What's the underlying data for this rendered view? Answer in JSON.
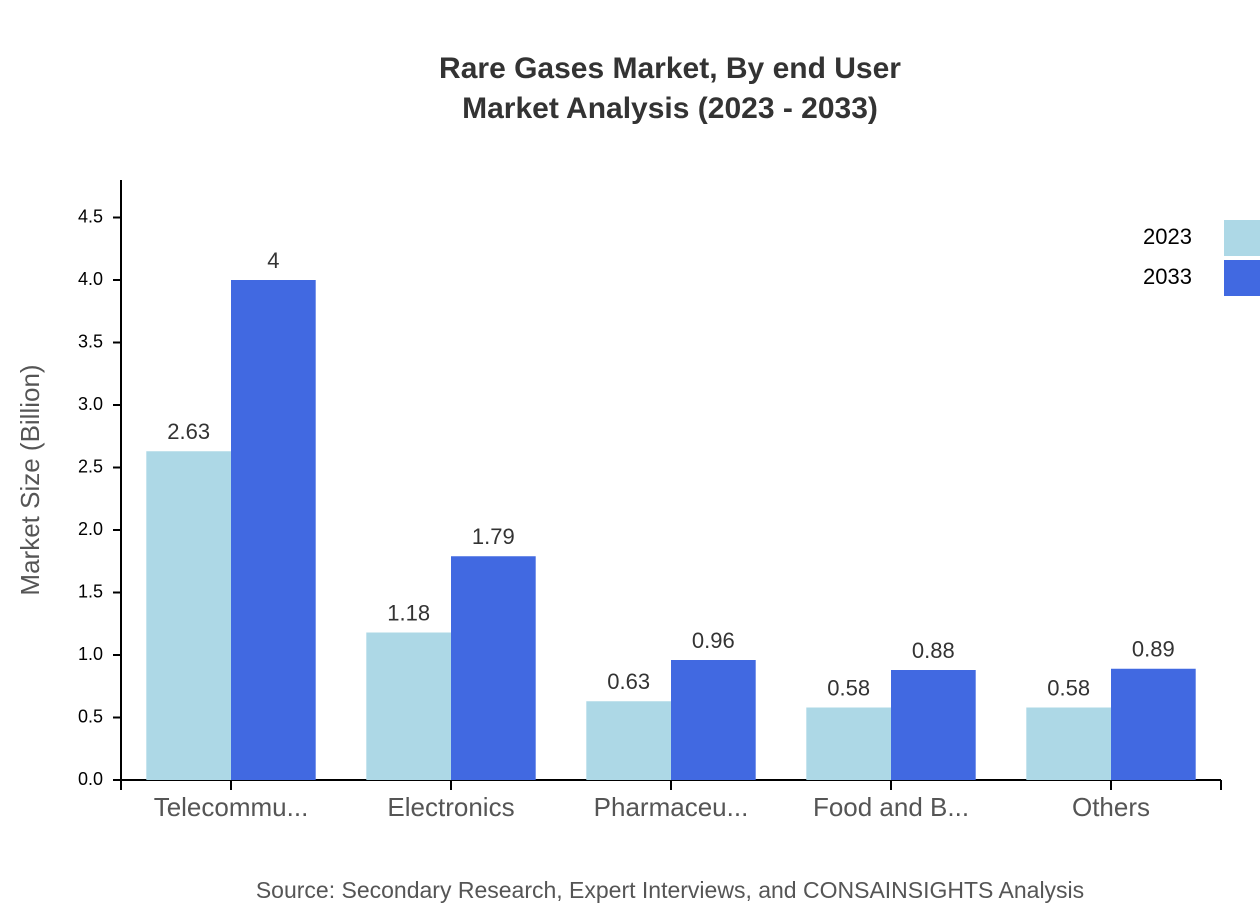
{
  "chart_data": {
    "type": "bar",
    "title": "Rare Gases Market, By end User",
    "subtitle": "Market Analysis (2023 - 2033)",
    "y_label": "Market Size (Billion)",
    "source": "Source: Secondary Research, Expert Interviews, and CONSAINSIGHTS Analysis",
    "categories": [
      "Telecommu...",
      "Electronics",
      "Pharmaceu...",
      "Food and B...",
      "Others"
    ],
    "series": [
      {
        "name": "2023",
        "color": "#add8e6",
        "values": [
          2.63,
          1.18,
          0.63,
          0.58,
          0.58
        ]
      },
      {
        "name": "2033",
        "color": "#4169e1",
        "values": [
          4,
          1.79,
          0.96,
          0.88,
          0.89
        ]
      }
    ],
    "ylim": [
      0,
      4.8
    ],
    "yticks": [
      {
        "value": 0,
        "label": "0.0"
      },
      0.5,
      {
        "value": 1,
        "label": "1.0"
      },
      1.5,
      {
        "value": 2,
        "label": "2.0"
      },
      2.5,
      {
        "value": 3,
        "label": "3.0"
      },
      3.5,
      {
        "value": 4,
        "label": "4.0"
      },
      4.5
    ],
    "legend": "top-right"
  }
}
